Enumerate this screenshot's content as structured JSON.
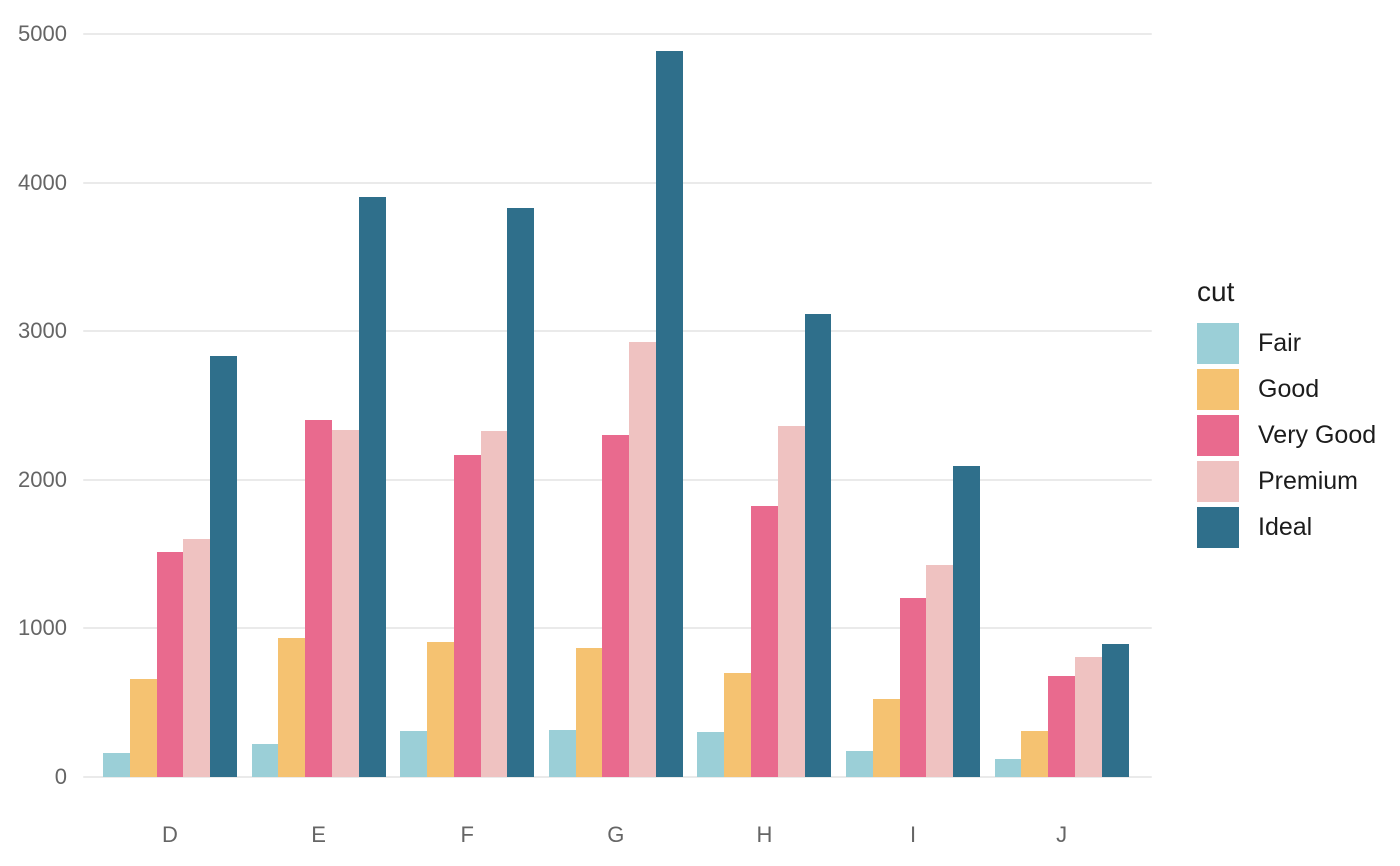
{
  "chart_data": {
    "type": "bar",
    "mode": "grouped",
    "title": "",
    "xlabel": "",
    "ylabel": "",
    "legend_title": "cut",
    "legend_position": "right",
    "grid": true,
    "background": "#ffffff",
    "categories": [
      "D",
      "E",
      "F",
      "G",
      "H",
      "I",
      "J"
    ],
    "series": [
      {
        "name": "Fair",
        "color": "#9BCFD7",
        "values": [
          163,
          224,
          312,
          314,
          303,
          175,
          119
        ]
      },
      {
        "name": "Good",
        "color": "#F5C271",
        "values": [
          662,
          933,
          909,
          871,
          702,
          522,
          307
        ]
      },
      {
        "name": "Very Good",
        "color": "#E96A8E",
        "values": [
          1513,
          2400,
          2164,
          2299,
          1824,
          1204,
          678
        ]
      },
      {
        "name": "Premium",
        "color": "#EFC2C1",
        "values": [
          1603,
          2337,
          2331,
          2924,
          2360,
          1428,
          808
        ]
      },
      {
        "name": "Ideal",
        "color": "#2F6F8B",
        "values": [
          2834,
          3903,
          3826,
          4884,
          3115,
          2093,
          896
        ]
      }
    ],
    "y_ticks": [
      0,
      1000,
      2000,
      3000,
      4000,
      5000
    ],
    "ylim": [
      0,
      5230
    ],
    "colors": {
      "tick_label": "#656565",
      "legend_text": "#1c1c1c",
      "gridline": "#EAEAEA"
    }
  }
}
